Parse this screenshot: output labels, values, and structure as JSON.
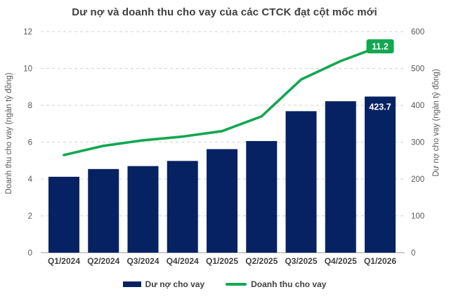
{
  "chart_data": {
    "type": "combo",
    "title": "Dư nợ và doanh thu cho vay của các CTCK đạt cột mốc mới",
    "categories": [
      "Q1/2024",
      "Q2/2024",
      "Q3/2024",
      "Q4/2024",
      "Q1/2025",
      "Q2/2025",
      "Q3/2025",
      "Q4/2025",
      "Q1/2026"
    ],
    "series": [
      {
        "name": "Dư nợ cho vay",
        "type": "bar",
        "axis": "right",
        "values": [
          206,
          227,
          235,
          249,
          281,
          303,
          384,
          411,
          423.7
        ],
        "end_label": {
          "index": 8,
          "text": "423.7",
          "style": "on-bar"
        }
      },
      {
        "name": "Doanh thu cho vay",
        "type": "line",
        "axis": "left",
        "values": [
          5.3,
          5.8,
          6.1,
          6.3,
          6.6,
          7.4,
          9.4,
          10.4,
          11.2
        ],
        "end_label": {
          "index": 8,
          "text": "11.2",
          "style": "badge"
        }
      }
    ],
    "left_axis": {
      "label": "Doanh thu cho vay (ngàn tỷ đồng)",
      "min": 0,
      "max": 12,
      "ticks": [
        0,
        2,
        4,
        6,
        8,
        10,
        12
      ]
    },
    "right_axis": {
      "label": "Dư nợ cho vay (ngàn tỷ đồng)",
      "min": 0,
      "max": 600,
      "ticks": [
        0,
        100,
        200,
        300,
        400,
        500,
        600
      ]
    },
    "grid": "dashed-horizontal",
    "legend_position": "bottom",
    "colors": {
      "bar": "#072263",
      "line": "#12a751",
      "grid": "#d9d9d9",
      "axis_line": "#cccccc",
      "tick_text": "#595959",
      "axis_title_text": "#595959",
      "title_text": "#404040",
      "x_label_text": "#404040",
      "on_bar_label_text": "#ffffff",
      "badge_bg": "#12a751",
      "badge_text": "#ffffff"
    }
  }
}
